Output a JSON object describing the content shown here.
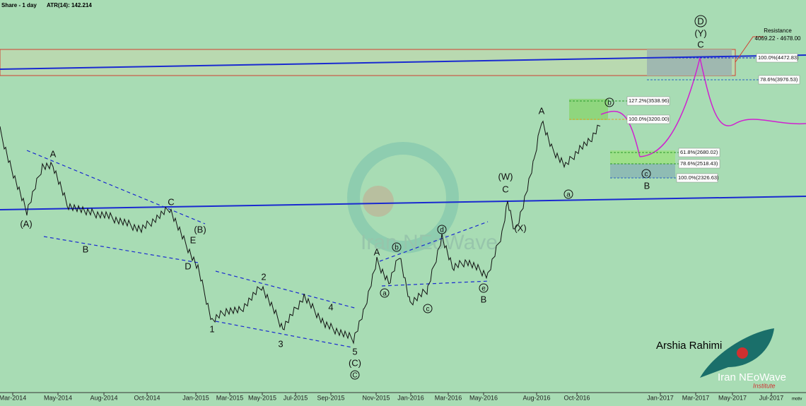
{
  "header": {
    "title": "Share - 1 day",
    "indicator": "ATR(14): 142.214"
  },
  "x_axis": [
    "Mar-2014",
    "May-2014",
    "Aug-2014",
    "Oct-2014",
    "Jan-2015",
    "Mar-2015",
    "May-2015",
    "Jul-2015",
    "Sep-2015",
    "Nov-2015",
    "Jan-2016",
    "Mar-2016",
    "May-2016",
    "Aug-2016",
    "Oct-2016",
    "Jan-2017",
    "Mar-2017",
    "May-2017",
    "Jul-2017"
  ],
  "wave_labels": [
    "(A)",
    "A",
    "B",
    "C",
    "(B)",
    "E",
    "D",
    "1",
    "2",
    "3",
    "4",
    "5",
    "(C)",
    "C",
    "A",
    "b",
    "a",
    "c",
    "d",
    "e",
    "B",
    "(W)",
    "C",
    "(X)",
    "A",
    "a",
    "b",
    "c",
    "B",
    "D",
    "(Y)",
    "C"
  ],
  "fib_levels": [
    "127.2%(3538.96)",
    "100.0%(3200.00)",
    "61.8%(2680.02)",
    "78.6%(2518.43)",
    "100.0%(2326.63)",
    "100.0%(4472.83)",
    "78.6%(3976.53)"
  ],
  "resistance": {
    "title": "Resistance",
    "range": "4069.22 - 4678.00"
  },
  "branding": {
    "author": "Arshia Rahimi",
    "brand": "Iran NEoWave",
    "sub": "Institute",
    "watermark": "Iran NEoWave"
  },
  "footer": "motiv"
}
